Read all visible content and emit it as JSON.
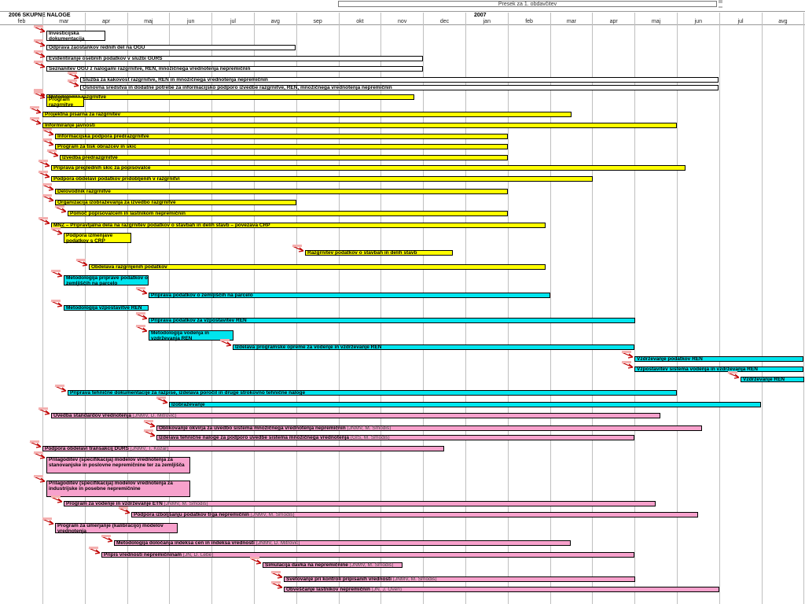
{
  "header": {
    "title": "Presek za 1. obdavčitev",
    "year_2006": "2006  SKUPNE NALOGE",
    "year_2007": "2007",
    "months": [
      "feb",
      "mar",
      "apr",
      "maj",
      "jun",
      "jul",
      "avg",
      "sep",
      "okt",
      "nov",
      "dec",
      "jan",
      "feb",
      "mar",
      "apr",
      "maj",
      "jun",
      "jul",
      "avg"
    ]
  },
  "colors": {
    "white": "#ffffff",
    "yellow": "#ffff00",
    "cyan": "#00e5ee",
    "pink": "#f7a1cc",
    "milestone": "#c00000"
  },
  "tasks": [
    {
      "label": "Investicijska dokumentacija",
      "sub": "",
      "color": "white",
      "start": 0.1,
      "end": 1.5,
      "wrap": true
    },
    {
      "label": "Odprava zaostankov rednih del na OGU",
      "sub": "",
      "color": "white",
      "start": 0.1,
      "end": 6.0
    },
    {
      "label": "Evidentiranje osebnih podatkov v službi GURS",
      "sub": "",
      "color": "white",
      "start": 0.1,
      "end": 9.0
    },
    {
      "label": "Seznanitev OGU z nalogami razgrnitve, REN, množičnega vrednotenja nepremičnin",
      "sub": "",
      "color": "white",
      "start": 0.1,
      "end": 9.0
    },
    {
      "label": "Služba za kakovost razgrnitve, REN in množičnega vrednotenja nepremičnin",
      "sub": "",
      "color": "white",
      "start": 0.9,
      "end": 16.0
    },
    {
      "label": "Osnovna sredstva in dodatne potrebe za informacijsko podporo izvedbe razgrnitve, REN, množičnega vrednotenja nepremičnin",
      "sub": "",
      "color": "white",
      "start": 0.9,
      "end": 16.0
    },
    {
      "label": "Metodologija razgrnitve",
      "sub": "",
      "color": "yellow",
      "start": 0.1,
      "end": 8.8
    },
    {
      "label": "Program razgrnitve",
      "sub": "",
      "color": "yellow",
      "start": 0.1,
      "end": 1.0,
      "wrap": true
    },
    {
      "label": "Projektna pisarna za razgrnitev",
      "sub": "",
      "color": "yellow",
      "start": 0.0,
      "end": 12.5
    },
    {
      "label": "Informiranje javnosti",
      "sub": "",
      "color": "yellow",
      "start": 0.0,
      "end": 15.0
    },
    {
      "label": "Informacijska podpora predrazgrnitve",
      "sub": "",
      "color": "yellow",
      "start": 0.3,
      "end": 11.0
    },
    {
      "label": "Program za tisk obrazcev in skic",
      "sub": "",
      "color": "yellow",
      "start": 0.3,
      "end": 11.0
    },
    {
      "label": "Izvedba predrazgrnitve",
      "sub": "",
      "color": "yellow",
      "start": 0.4,
      "end": 11.0
    },
    {
      "label": "Priprava preglednih skic za popisovalce",
      "sub": "",
      "color": "yellow",
      "start": 0.2,
      "end": 15.2
    },
    {
      "label": "Podpora obdelavi podatkov pridobljenih v razgrnitvi",
      "sub": "",
      "color": "yellow",
      "start": 0.2,
      "end": 13.0
    },
    {
      "label": "Delovodnik razgrnitve",
      "sub": "",
      "color": "yellow",
      "start": 0.3,
      "end": 11.0
    },
    {
      "label": "Organizacija izobraževanja za izvedbo razgrnitve",
      "sub": "",
      "color": "yellow",
      "start": 0.3,
      "end": 6.0
    },
    {
      "label": "Pomoč popisovalcem in lastnikom nepremičnin",
      "sub": "",
      "color": "yellow",
      "start": 0.6,
      "end": 11.0
    },
    {
      "label": "MNZ – Pripravljalna dela na razgrnitev podatkov o stavbah in delih stavb – povezava CRP",
      "sub": "",
      "color": "yellow",
      "start": 0.2,
      "end": 11.9
    },
    {
      "label": "Podpora izmenjave podatkov s CRP",
      "sub": "",
      "color": "yellow",
      "start": 0.5,
      "end": 2.1,
      "wrap": true
    },
    {
      "label": "Razgrnitev podatkov o stavbah in delih stavb",
      "sub": "",
      "color": "yellow",
      "start": 6.2,
      "end": 9.7
    },
    {
      "label": "Obdelava razgrnjenih podatkov",
      "sub": "",
      "color": "yellow",
      "start": 1.1,
      "end": 11.9
    },
    {
      "label": "Metodologija priprave podatkov o zemljiščih na parcelo",
      "sub": "",
      "color": "cyan",
      "start": 0.5,
      "end": 2.5,
      "wrap": true
    },
    {
      "label": "Priprava podatkov o zemljiščih na parcelo",
      "sub": "",
      "color": "cyan",
      "start": 2.5,
      "end": 12.0
    },
    {
      "label": "Metodologija vzpostavitve REN",
      "sub": "",
      "color": "cyan",
      "start": 0.5,
      "end": 2.5
    },
    {
      "label": "Priprava podatkov za vzpostavitev REN",
      "sub": "",
      "color": "cyan",
      "start": 2.5,
      "end": 14.0
    },
    {
      "label": "Metodologija vodenja in vzdrževanja REN",
      "sub": "",
      "color": "cyan",
      "start": 2.5,
      "end": 4.5,
      "wrap": true
    },
    {
      "label": "Izdelava programske opreme za vodenje in vzdrževanje REN",
      "sub": "",
      "color": "cyan",
      "start": 4.5,
      "end": 14.0
    },
    {
      "label": "Vzdrževanje podatkov REN",
      "sub": "",
      "color": "cyan",
      "start": 14.0,
      "end": 18.0
    },
    {
      "label": "Vzpostavitev sistema vodenja in vzdrževanja REN",
      "sub": "",
      "color": "cyan",
      "start": 14.0,
      "end": 18.0
    },
    {
      "label": "Vzdrževanje REN",
      "sub": "",
      "color": "cyan",
      "start": 16.5,
      "end": 18.0
    },
    {
      "label": "Priprava tehnične dokumentacije za razpise, izdelava poročil in druge strokovno tehnične naloge",
      "sub": "",
      "color": "cyan",
      "start": 0.6,
      "end": 15.0
    },
    {
      "label": "Izobraževanje",
      "sub": "",
      "color": "cyan",
      "start": 3.0,
      "end": 17.0
    },
    {
      "label": "Uvedba standardov vrednotenja",
      "sub": " (JNMV, D. Mitrović)",
      "color": "pink",
      "start": 0.2,
      "end": 14.6
    },
    {
      "label": "Oblikovanje okvirja za uvedbo sistema množičnega vrednotenja nepremičnin",
      "sub": " (JNMV, M. Smodiš)",
      "color": "pink",
      "start": 2.7,
      "end": 15.6
    },
    {
      "label": "Izdelava tehnične naloge za podporo uvedbe sistema množičnega vrednotenja",
      "sub": " (GIS, M. Smodiš)",
      "color": "pink",
      "start": 2.7,
      "end": 14.0
    },
    {
      "label": "Podpora obdelavi transakcij DURS",
      "sub": " (JNMV, T. Kožar)",
      "color": "pink",
      "start": 0.0,
      "end": 9.5
    },
    {
      "label": "Prilagoditev (specifikacija) modelov vrednotenja za stanovanjske in poslovne nepremičnine ter za zemljišča",
      "sub": "",
      "color": "pink",
      "start": 0.1,
      "end": 3.5,
      "wrap": true
    },
    {
      "label": "Prilagoditev (specifikacija) modelov vrednotenja za industrijske in posebne nepremičnine",
      "sub": "",
      "color": "pink",
      "start": 0.1,
      "end": 3.5,
      "wrap": true
    },
    {
      "label": "Program za vodenje in vzdrževanje ETN",
      "sub": " (JNMV, M. Smodiš)",
      "color": "pink",
      "start": 0.5,
      "end": 14.5
    },
    {
      "label": "Podpora izboljšanju podatkov trga nepremičnin",
      "sub": " (JNMV, M. Smodiš)",
      "color": "pink",
      "start": 2.1,
      "end": 15.5
    },
    {
      "label": "Program za umerjanje (kalibracijo) modelov vrednotenja",
      "sub": "",
      "color": "pink",
      "start": 0.3,
      "end": 3.2,
      "wrap": true
    },
    {
      "label": "Metodologija določanja indeksa cen in indeksa vrednosti",
      "sub": " (JNMV, D. Mitrović)",
      "color": "pink",
      "start": 1.7,
      "end": 12.5
    },
    {
      "label": "Pripis vrednosti nepremičninam",
      "sub": " (JN, D. Lebe)",
      "color": "pink",
      "start": 1.4,
      "end": 14.0
    },
    {
      "label": "Simulacija davka na nepremičnine",
      "sub": " (JNMV, M. Smodiš)",
      "color": "pink",
      "start": 5.2,
      "end": 8.5
    },
    {
      "label": "Svetovanje pri kontroli pripisanih vrednosti",
      "sub": " (JNMV, M. Smodiš)",
      "color": "pink",
      "start": 5.7,
      "end": 14.0
    },
    {
      "label": "Obveščanje lastnikov nepremičnin",
      "sub": " (JN, J. Oven)",
      "color": "pink",
      "start": 5.7,
      "end": 16.0
    }
  ]
}
